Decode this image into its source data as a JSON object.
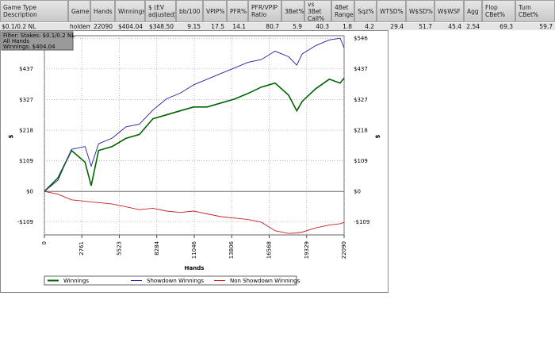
{
  "table": {
    "headers": [
      "Game Type Description",
      "Game",
      "Hands",
      "Winnings",
      "$ (EV adjusted)",
      "bb/100",
      "VPIP%",
      "PFR%",
      "PFR/VPIP Ratio",
      "3Bet%",
      "vs 3Bet Call%",
      "4Bet Range",
      "Sqz%",
      "WTSD%",
      "W$SD%",
      "W$WSF",
      "Agg",
      "Flop CBet%",
      "Turn CBet%"
    ],
    "rows": [
      [
        "$0.1/0.2 NL",
        "holdem",
        "22090",
        "$404.04",
        "$348.50",
        "9.15",
        "17.5",
        "14.1",
        "80.7",
        "5.9",
        "40.3",
        "1.8",
        "4.2",
        "29.4",
        "51.7",
        "45.4",
        "2.54",
        "69.3",
        "59.7"
      ]
    ]
  },
  "chart": {
    "type": "line",
    "filter": [
      "Filter: Stakes: $0.1/0.2 NL",
      "All Hands",
      "Winnings: $404.04"
    ],
    "xlabel": "Hands",
    "ylabel": "$",
    "y2label": "$",
    "xlim": [
      0,
      22090
    ],
    "xticks": [
      0,
      2761,
      5523,
      8284,
      11046,
      13806,
      16568,
      19329,
      22090
    ],
    "ylim": [
      -155,
      555
    ],
    "yticks": [
      {
        "value": 546,
        "label": "$546"
      },
      {
        "value": 437,
        "label": "$437"
      },
      {
        "value": 327,
        "label": "$327"
      },
      {
        "value": 218,
        "label": "$218"
      },
      {
        "value": 109,
        "label": "$109"
      },
      {
        "value": 0,
        "label": "$0"
      },
      {
        "value": -109,
        "label": "-$109"
      }
    ],
    "grid": true,
    "x": [
      0,
      1000,
      2000,
      3000,
      3450,
      4000,
      5000,
      6000,
      7000,
      8000,
      9000,
      10000,
      11000,
      12000,
      13000,
      14000,
      15000,
      16000,
      17000,
      18000,
      18600,
      19000,
      20000,
      21000,
      21800,
      22090
    ],
    "series": [
      {
        "name": "Winnings",
        "color": "#006400",
        "values": [
          0,
          48,
          146,
          104,
          20,
          146,
          160,
          189,
          203,
          259,
          273,
          287,
          301,
          301,
          315,
          329,
          349,
          372,
          386,
          343,
          287,
          321,
          366,
          400,
          386,
          404.04
        ]
      },
      {
        "name": "Showdown Winnings",
        "color": "#2020a0",
        "values": [
          0,
          40,
          150,
          160,
          90,
          170,
          190,
          230,
          240,
          290,
          330,
          350,
          380,
          400,
          420,
          440,
          460,
          470,
          500,
          480,
          450,
          490,
          520,
          540,
          546,
          512
        ]
      },
      {
        "name": "Non Showdown Winnings",
        "color": "#c82020",
        "values": [
          0,
          -10,
          -30,
          -35,
          -38,
          -40,
          -45,
          -55,
          -65,
          -60,
          -70,
          -75,
          -70,
          -80,
          -90,
          -95,
          -100,
          -110,
          -140,
          -150,
          -148,
          -145,
          -130,
          -120,
          -115,
          -110
        ]
      }
    ]
  }
}
